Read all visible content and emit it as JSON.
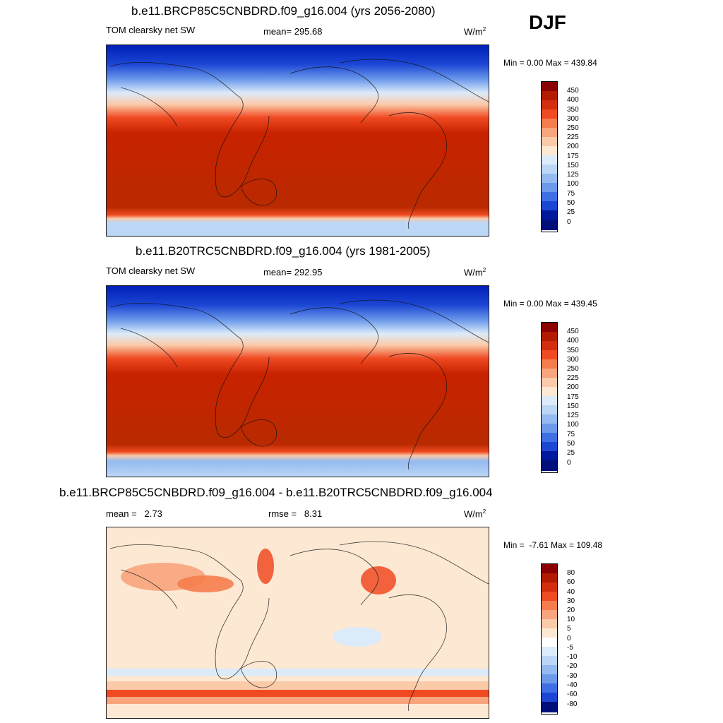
{
  "season": "DJF",
  "chart_data": [
    {
      "type": "heatmap",
      "title": "b.e11.BRCP85C5CNBDRD.f09_g16.004 (yrs 2056-2080)",
      "variable": "TOM clearsky net SW",
      "mean_label": "mean= 295.68",
      "units_base": "W/m",
      "units_exp": "2",
      "minmax_label": "Min =   0.00 Max = 439.84",
      "min": 0.0,
      "max": 439.84,
      "colorbar_levels": [
        "450",
        "400",
        "350",
        "300",
        "250",
        "225",
        "200",
        "175",
        "150",
        "125",
        "100",
        "75",
        "50",
        "25",
        "0"
      ],
      "colorbar_colors": [
        "#8b0000",
        "#b31a00",
        "#d32e10",
        "#ef4a22",
        "#f57d4d",
        "#f8a47c",
        "#fbcaa9",
        "#fde8d3",
        "#dcebfa",
        "#bcd6f6",
        "#94baf1",
        "#6c9aeb",
        "#3f6fe3",
        "#1c46d4",
        "#00189b",
        "#000f7a"
      ]
    },
    {
      "type": "heatmap",
      "title": "b.e11.B20TRC5CNBDRD.f09_g16.004 (yrs 1981-2005)",
      "variable": "TOM clearsky net SW",
      "mean_label": "mean= 292.95",
      "units_base": "W/m",
      "units_exp": "2",
      "minmax_label": "Min =   0.00 Max = 439.45",
      "min": 0.0,
      "max": 439.45,
      "colorbar_levels": [
        "450",
        "400",
        "350",
        "300",
        "250",
        "225",
        "200",
        "175",
        "150",
        "125",
        "100",
        "75",
        "50",
        "25",
        "0"
      ],
      "colorbar_colors": [
        "#8b0000",
        "#b31a00",
        "#d32e10",
        "#ef4a22",
        "#f57d4d",
        "#f8a47c",
        "#fbcaa9",
        "#fde8d3",
        "#dcebfa",
        "#bcd6f6",
        "#94baf1",
        "#6c9aeb",
        "#3f6fe3",
        "#1c46d4",
        "#00189b",
        "#000f7a"
      ]
    },
    {
      "type": "heatmap",
      "title": "b.e11.BRCP85C5CNBDRD.f09_g16.004 - b.e11.B20TRC5CNBDRD.f09_g16.004",
      "mean_label": "mean =   2.73",
      "rmse_label": "rmse =   8.31",
      "units_base": "W/m",
      "units_exp": "2",
      "minmax_label": "Min =  -7.61 Max = 109.48",
      "min": -7.61,
      "max": 109.48,
      "colorbar_levels": [
        "80",
        "60",
        "40",
        "30",
        "20",
        "10",
        "5",
        "0",
        "-5",
        "-10",
        "-20",
        "-30",
        "-40",
        "-60",
        "-80"
      ],
      "colorbar_colors": [
        "#8b0000",
        "#b31a00",
        "#d32e10",
        "#ef4a22",
        "#f57d4d",
        "#f8a47c",
        "#fbcaa9",
        "#fde8d3",
        "#ffffff",
        "#dcebfa",
        "#bcd6f6",
        "#94baf1",
        "#6c9aeb",
        "#3f6fe3",
        "#1c46d4",
        "#000f7a"
      ]
    }
  ]
}
